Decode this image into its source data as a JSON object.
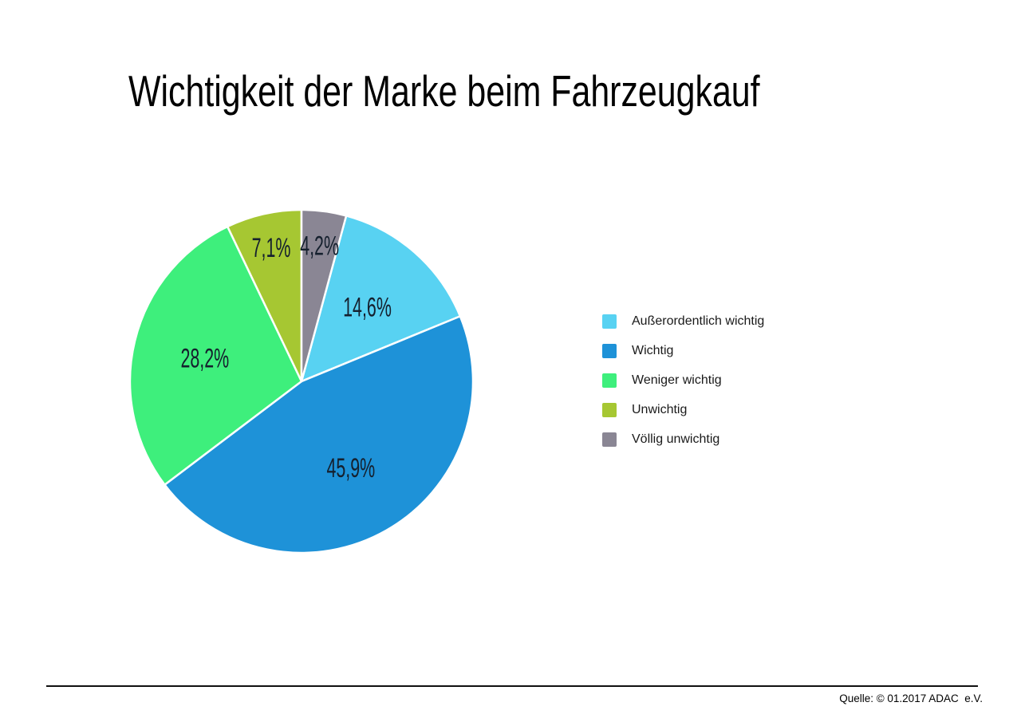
{
  "title": "Wichtigkeit der Marke beim Fahrzeugkauf",
  "footer": {
    "source_label": "Quelle: © 01.2017 ADAC  e.V."
  },
  "chart_data": {
    "type": "pie",
    "title": "Wichtigkeit der Marke beim Fahrzeugkauf",
    "unit": "%",
    "legend_position": "right",
    "start_angle_deg": 15.12,
    "label_color": "#15202E",
    "separator_color": "#FFFFFF",
    "slices": [
      {
        "name": "Außerordentlich wichtig",
        "value": 14.6,
        "label": "14,6%",
        "color": "#58D2F2"
      },
      {
        "name": "Wichtig",
        "value": 45.9,
        "label": "45,9%",
        "color": "#1E92D8"
      },
      {
        "name": "Weniger wichtig",
        "value": 28.2,
        "label": "28,2%",
        "color": "#3EEF7C"
      },
      {
        "name": "Unwichtig",
        "value": 7.1,
        "label": "7,1%",
        "color": "#A6C732"
      },
      {
        "name": "Völlig unwichtig",
        "value": 4.2,
        "label": "4,2%",
        "color": "#8A8694"
      }
    ]
  }
}
